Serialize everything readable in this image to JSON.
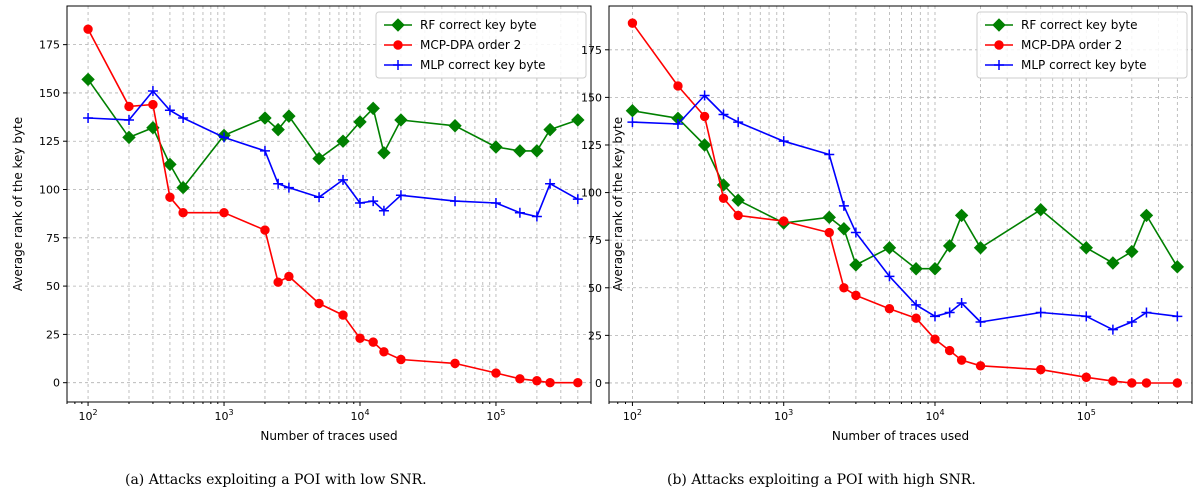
{
  "colors": {
    "rf": "#008000",
    "mcp": "#ff0000",
    "mlp": "#0000ff",
    "grid": "#b0b0b0",
    "frame": "#000000"
  },
  "chart_data": [
    {
      "type": "line",
      "title": "",
      "caption": "(a) Attacks exploiting a POI with low SNR.",
      "xlabel": "Number of traces used",
      "ylabel": "Average rank of the key byte",
      "xscale": "log",
      "xlim": [
        70,
        500000
      ],
      "ylim": [
        -10,
        195
      ],
      "yticks": [
        0,
        25,
        50,
        75,
        100,
        125,
        150,
        175
      ],
      "xticks": [
        {
          "value": 100,
          "base": "10",
          "exp": "2"
        },
        {
          "value": 1000,
          "base": "10",
          "exp": "3"
        },
        {
          "value": 10000,
          "base": "10",
          "exp": "4"
        },
        {
          "value": 100000,
          "base": "10",
          "exp": "5"
        }
      ],
      "grid": true,
      "legend_position": "top-right",
      "series": [
        {
          "name": "RF correct key byte",
          "color_key": "rf",
          "marker": "diamond",
          "x": [
            100,
            200,
            300,
            400,
            500,
            1000,
            2000,
            2500,
            3000,
            5000,
            7500,
            10000,
            12500,
            15000,
            20000,
            50000,
            100000,
            150000,
            200000,
            250000,
            400000
          ],
          "y": [
            157,
            127,
            132,
            113,
            101,
            128,
            137,
            131,
            138,
            116,
            125,
            135,
            142,
            119,
            136,
            133,
            122,
            120,
            120,
            131,
            136
          ]
        },
        {
          "name": "MCP-DPA order 2",
          "color_key": "mcp",
          "marker": "circle",
          "x": [
            100,
            200,
            300,
            400,
            500,
            1000,
            2000,
            2500,
            3000,
            5000,
            7500,
            10000,
            12500,
            15000,
            20000,
            50000,
            100000,
            150000,
            200000,
            250000,
            400000
          ],
          "y": [
            183,
            143,
            144,
            96,
            88,
            88,
            79,
            52,
            55,
            41,
            35,
            23,
            21,
            16,
            12,
            10,
            5,
            2,
            1,
            0,
            0
          ]
        },
        {
          "name": "MLP correct key byte",
          "color_key": "mlp",
          "marker": "plus",
          "x": [
            100,
            200,
            300,
            400,
            500,
            1000,
            2000,
            2500,
            3000,
            5000,
            7500,
            10000,
            12500,
            15000,
            20000,
            50000,
            100000,
            150000,
            200000,
            250000,
            400000
          ],
          "y": [
            137,
            136,
            151,
            141,
            137,
            127,
            120,
            103,
            101,
            96,
            105,
            93,
            94,
            89,
            97,
            94,
            93,
            88,
            86,
            103,
            95
          ]
        }
      ]
    },
    {
      "type": "line",
      "title": "",
      "caption": "(b) Attacks exploiting a POI with high SNR.",
      "xlabel": "Number of traces used",
      "ylabel": "Average rank of the key byte",
      "xscale": "log",
      "xlim": [
        70,
        500000
      ],
      "ylim": [
        -10,
        198
      ],
      "yticks": [
        0,
        25,
        50,
        75,
        100,
        125,
        150,
        175
      ],
      "xticks": [
        {
          "value": 100,
          "base": "10",
          "exp": "2"
        },
        {
          "value": 1000,
          "base": "10",
          "exp": "3"
        },
        {
          "value": 10000,
          "base": "10",
          "exp": "4"
        },
        {
          "value": 100000,
          "base": "10",
          "exp": "5"
        }
      ],
      "grid": true,
      "legend_position": "top-right",
      "series": [
        {
          "name": "RF correct key byte",
          "color_key": "rf",
          "marker": "diamond",
          "x": [
            100,
            200,
            300,
            400,
            500,
            1000,
            2000,
            2500,
            3000,
            5000,
            7500,
            10000,
            12500,
            15000,
            20000,
            50000,
            100000,
            150000,
            200000,
            250000,
            400000
          ],
          "y": [
            143,
            139,
            125,
            104,
            96,
            84,
            87,
            81,
            62,
            71,
            60,
            60,
            72,
            88,
            71,
            91,
            71,
            63,
            69,
            88,
            61
          ]
        },
        {
          "name": "MCP-DPA order 2",
          "color_key": "mcp",
          "marker": "circle",
          "x": [
            100,
            200,
            300,
            400,
            500,
            1000,
            2000,
            2500,
            3000,
            5000,
            7500,
            10000,
            12500,
            15000,
            20000,
            50000,
            100000,
            150000,
            200000,
            250000,
            400000
          ],
          "y": [
            189,
            156,
            140,
            97,
            88,
            85,
            79,
            50,
            46,
            39,
            34,
            23,
            17,
            12,
            9,
            7,
            3,
            1,
            0,
            0,
            0
          ]
        },
        {
          "name": "MLP correct key byte",
          "color_key": "mlp",
          "marker": "plus",
          "x": [
            100,
            200,
            300,
            400,
            500,
            1000,
            2000,
            2500,
            3000,
            5000,
            7500,
            10000,
            12500,
            15000,
            20000,
            50000,
            100000,
            150000,
            200000,
            250000,
            400000
          ],
          "y": [
            137,
            136,
            151,
            141,
            137,
            127,
            120,
            93,
            79,
            56,
            41,
            35,
            37,
            42,
            32,
            37,
            35,
            28,
            32,
            37,
            35
          ]
        }
      ]
    }
  ]
}
